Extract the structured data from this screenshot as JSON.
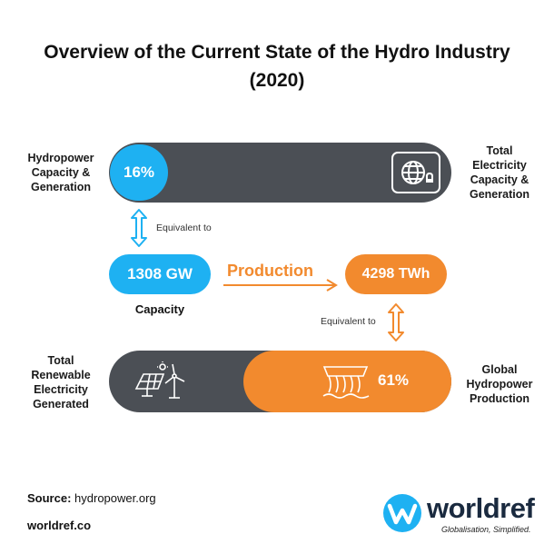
{
  "title": {
    "line1": "Overview of the Current State of the Hydro Industry",
    "line2": "(2020)"
  },
  "top_row": {
    "left_label": [
      "Hydropower",
      "Capacity &",
      "Generation"
    ],
    "share": "16%",
    "right_label": [
      "Total",
      "Electricity",
      "Capacity &",
      "Generation"
    ],
    "icon": "globe-electricity-icon"
  },
  "links": {
    "equivalent_left": "Equivalent to",
    "equivalent_right": "Equivalent to"
  },
  "middle_row": {
    "capacity_value": "1308 GW",
    "capacity_label": "Capacity",
    "production_label": "Production",
    "production_value": "4298 TWh"
  },
  "bottom_row": {
    "left_label": [
      "Total",
      "Renewable",
      "Electricity",
      "Generated"
    ],
    "share": "61%",
    "right_label": [
      "Global",
      "Hydropower",
      "Production"
    ],
    "left_icon": "solar-wind-icon",
    "right_icon": "dam-icon"
  },
  "footer": {
    "source_label": "Source:",
    "source_value": "hydropower.org",
    "site": "worldref.co",
    "brand": "worldref",
    "tagline": "Globalisation, Simplified."
  },
  "colors": {
    "blue": "#1eb1f2",
    "orange": "#f28a2e",
    "dark": "#4b4f55",
    "navy": "#1a2a3f"
  }
}
